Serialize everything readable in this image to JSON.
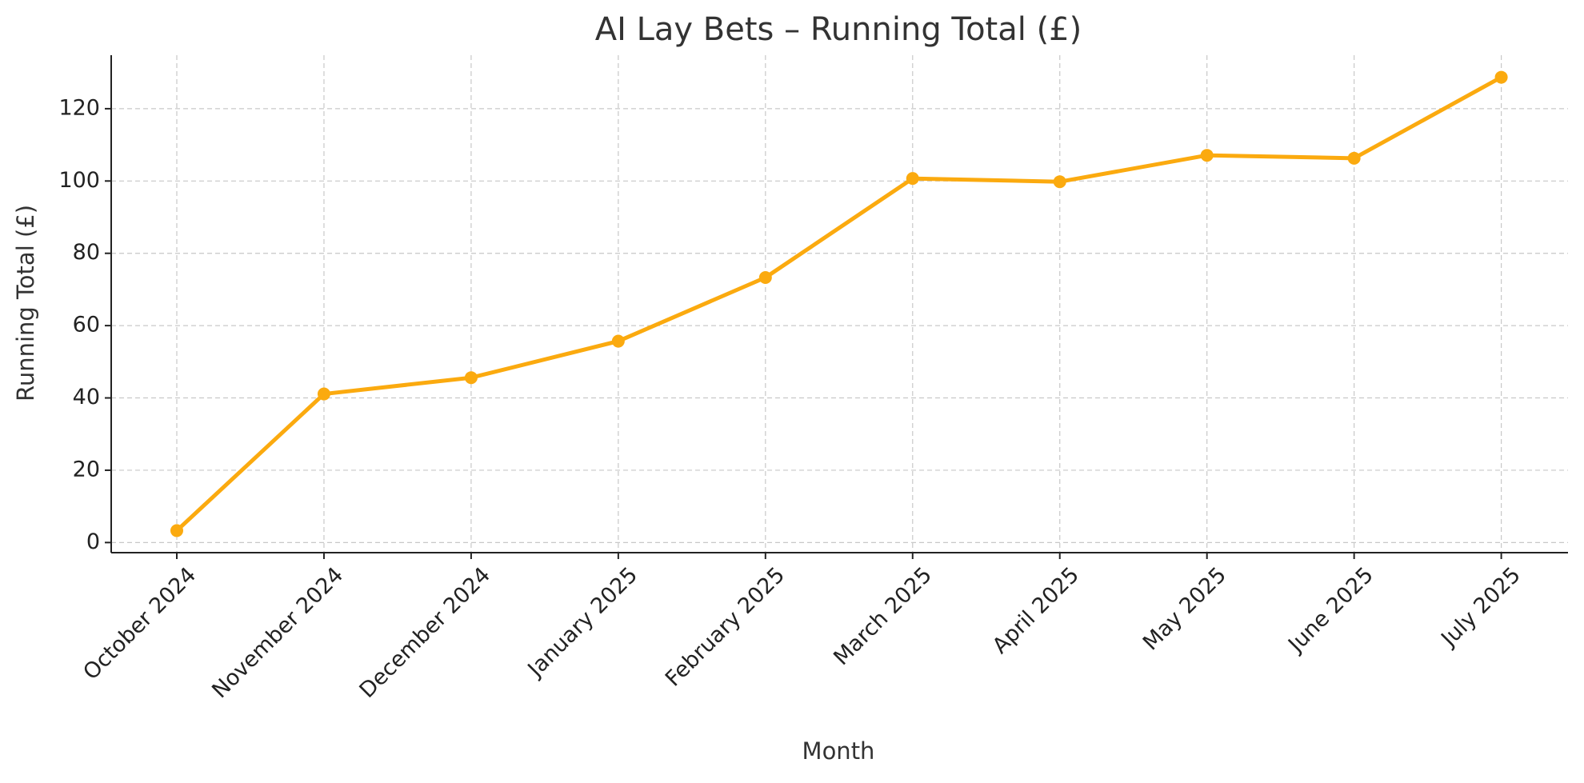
{
  "chart_data": {
    "type": "line",
    "title": "AI Lay Bets – Running Total (£)",
    "x_label": "Month",
    "y_label": "Running Total (£)",
    "categories": [
      "October 2024",
      "November 2024",
      "December 2024",
      "January 2025",
      "February 2025",
      "March 2025",
      "April 2025",
      "May 2025",
      "June 2025",
      "July 2025"
    ],
    "values": [
      3.3,
      41.1,
      45.6,
      55.7,
      73.3,
      100.7,
      99.8,
      107.1,
      106.3,
      128.7
    ],
    "color": "#fbaa0f",
    "ylim": [
      -2.8,
      134.8
    ],
    "yticks": [
      0,
      20,
      40,
      60,
      80,
      100,
      120
    ],
    "grid": true
  }
}
